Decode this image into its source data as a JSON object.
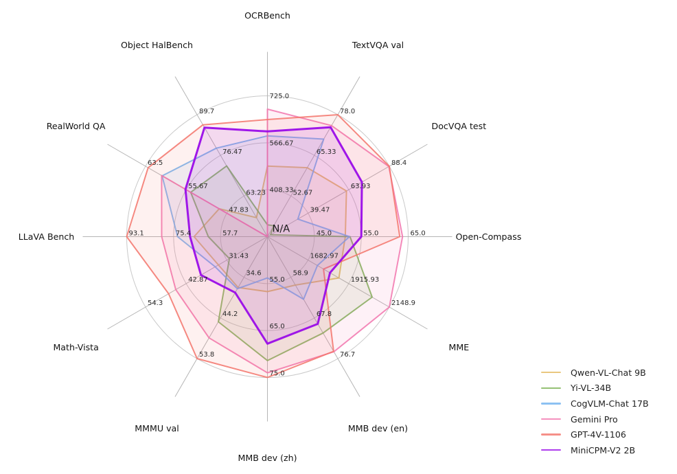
{
  "chart_data": {
    "type": "radar",
    "grid": true,
    "legend_position": "bottom-right",
    "center_label": "N/A",
    "axes": [
      {
        "label": "OCRBench",
        "min": 250,
        "max": 725,
        "ticks": [
          "408.33",
          "566.67",
          "725.0"
        ]
      },
      {
        "label": "TextVQA val",
        "min": 40,
        "max": 78,
        "ticks": [
          "52.67",
          "65.33",
          "78.0"
        ]
      },
      {
        "label": "DocVQA test",
        "min": 15,
        "max": 88.4,
        "ticks": [
          "39.47",
          "63.93",
          "88.4"
        ]
      },
      {
        "label": "Open-Compass",
        "min": 35,
        "max": 65,
        "ticks": [
          "45.0",
          "55.0",
          "65.0"
        ]
      },
      {
        "label": "MME",
        "min": 1450,
        "max": 2148.9,
        "ticks": [
          "1682.97",
          "1915.93",
          "2148.9"
        ]
      },
      {
        "label": "MMB dev (en)",
        "min": 50,
        "max": 76.7,
        "ticks": [
          "58.9",
          "67.8",
          "76.7"
        ]
      },
      {
        "label": "MMB dev (zh)",
        "min": 45,
        "max": 75,
        "ticks": [
          "55.0",
          "65.0",
          "75.0"
        ]
      },
      {
        "label": "MMMU val",
        "min": 25,
        "max": 53.8,
        "ticks": [
          "34.6",
          "44.2",
          "53.8"
        ]
      },
      {
        "label": "Math-Vista",
        "min": 20,
        "max": 54.3,
        "ticks": [
          "31.43",
          "42.87",
          "54.3"
        ]
      },
      {
        "label": "LLaVA Bench",
        "min": 40,
        "max": 93.1,
        "ticks": [
          "57.7",
          "75.4",
          "93.1"
        ]
      },
      {
        "label": "RealWorld QA",
        "min": 40,
        "max": 63.5,
        "ticks": [
          "47.83",
          "55.67",
          "63.5"
        ]
      },
      {
        "label": "Object HalBench",
        "min": 50,
        "max": 89.7,
        "ticks": [
          "63.23",
          "76.47",
          "89.7"
        ]
      }
    ],
    "series": [
      {
        "name": "Qwen-VL-Chat 9B",
        "color": "#E3B95F",
        "line_width": 2,
        "values": [
          488,
          61.5,
          62.6,
          51.6,
          1860.0,
          60.6,
          56.7,
          37.0,
          33.8,
          67.7,
          49.3,
          56.2
        ]
      },
      {
        "name": "Yi-VL-34B",
        "color": "#7AB252",
        "line_width": 2,
        "values": [
          290,
          43.4,
          16.9,
          52.6,
          2050.2,
          71.1,
          71.4,
          45.1,
          30.7,
          62.3,
          54.8,
          73.0
        ]
      },
      {
        "name": "CogVLM-Chat 17B",
        "color": "#6FB2EF",
        "line_width": 2,
        "values": [
          590,
          70.4,
          33.3,
          52.5,
          1736.6,
          63.7,
          53.8,
          37.3,
          34.7,
          73.9,
          60.3,
          78.8
        ]
      },
      {
        "name": "Gemini Pro",
        "color": "#F276AE",
        "line_width": 2,
        "values": [
          680,
          74.6,
          88.1,
          63.8,
          2148.9,
          75.2,
          74.0,
          48.9,
          45.8,
          79.9,
          60.4,
          null
        ]
      },
      {
        "name": "GPT-4V-1106",
        "color": "#F3746B",
        "line_width": 2,
        "values": [
          645,
          78.0,
          88.4,
          63.2,
          1771.5,
          75.1,
          75.0,
          53.8,
          47.8,
          93.1,
          63.0,
          86.4
        ]
      },
      {
        "name": "MiniCPM-V2 2B",
        "color": "#9A0CE8",
        "line_width": 3,
        "values": [
          605,
          74.1,
          71.9,
          55.0,
          1808.6,
          69.1,
          67.8,
          38.2,
          38.7,
          69.2,
          55.8,
          85.5
        ]
      }
    ]
  }
}
